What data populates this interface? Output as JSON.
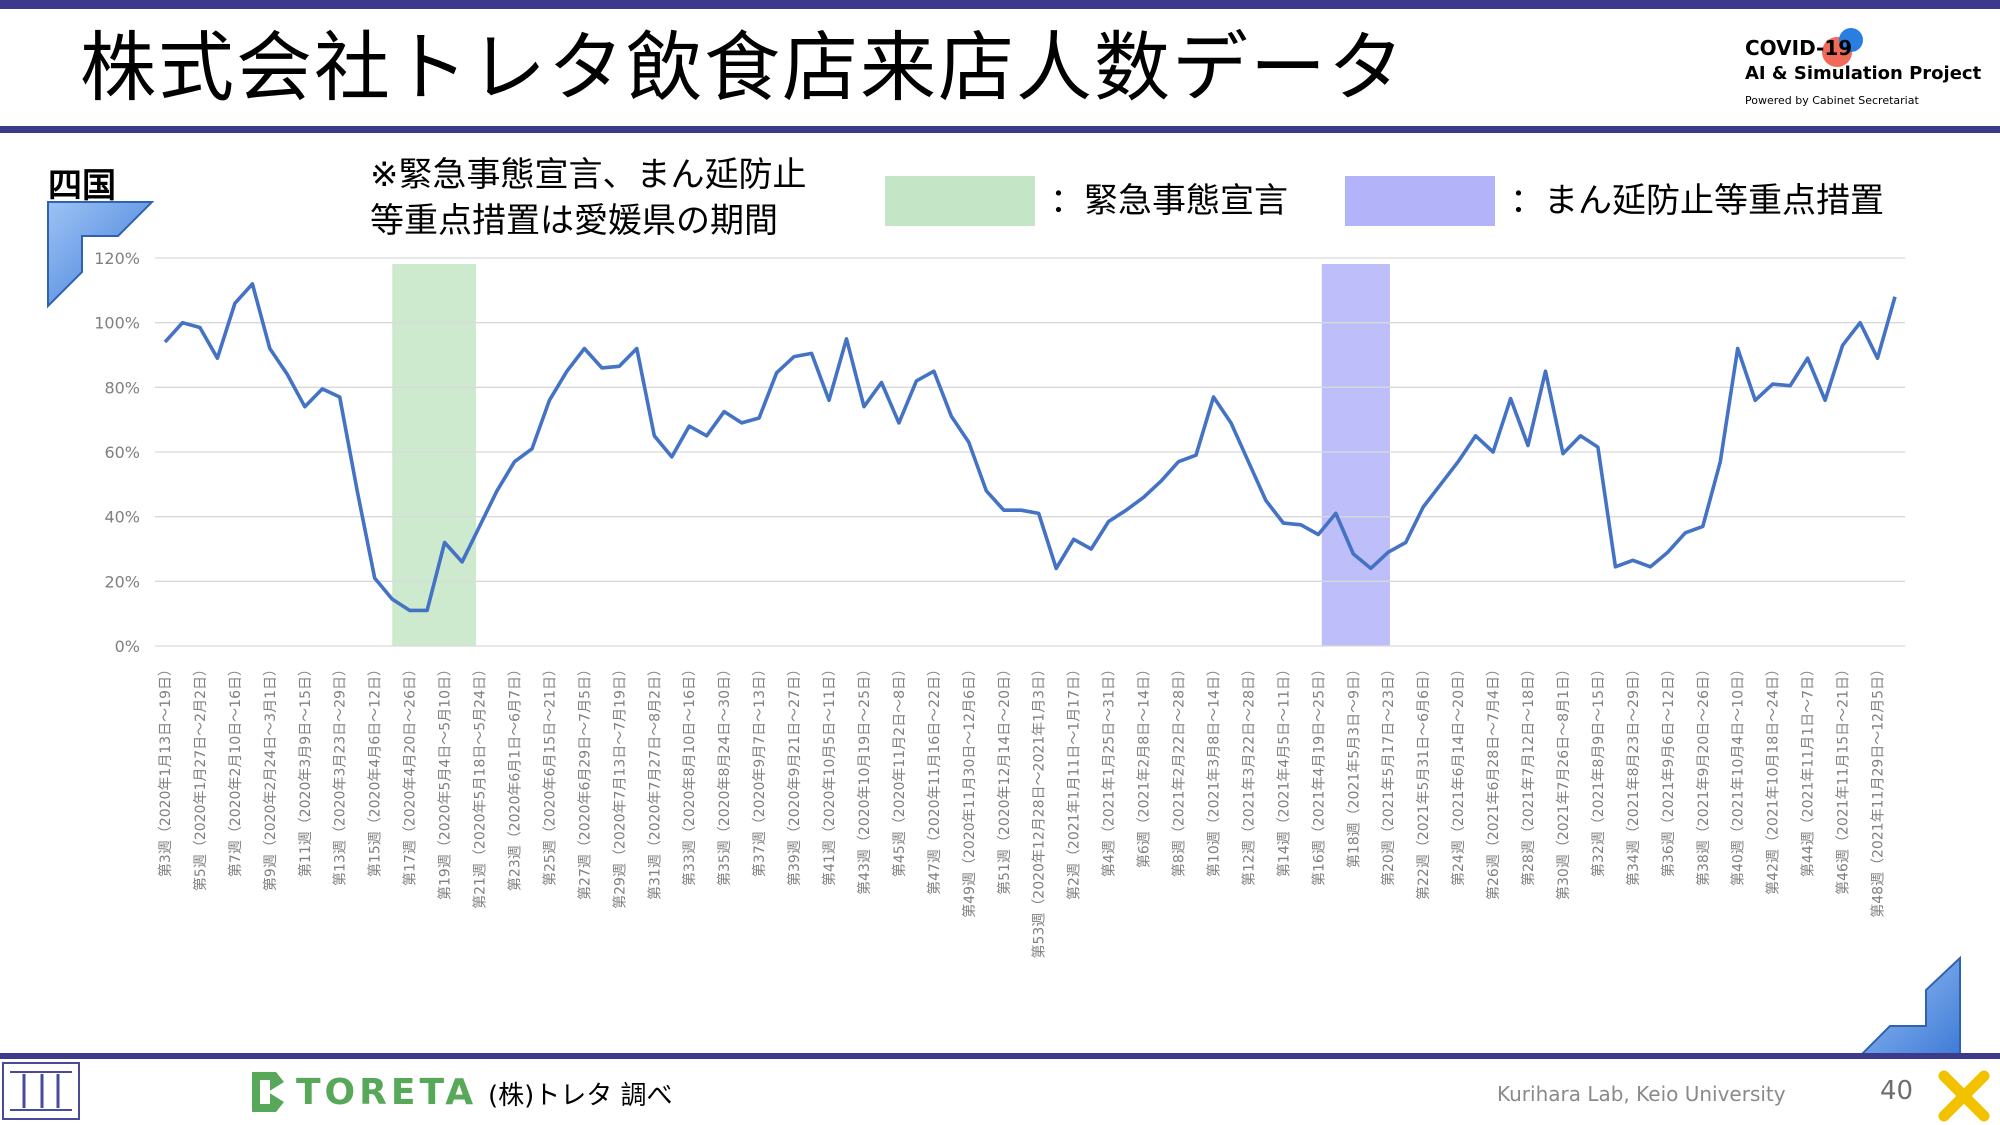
{
  "header": {
    "title": "株式会社トレタ飲食店来店人数データ",
    "logo_line1": "COVID-19",
    "logo_line2": "AI & Simulation Project",
    "logo_line3": "Powered by Cabinet Secretariat"
  },
  "region": "四国",
  "note": "※緊急事態宣言、まん延防止\n等重点措置は愛媛県の期間",
  "legend": {
    "green_label": "：緊急事態宣言",
    "blue_label": "：まん延防止等重点措置",
    "green_color": "#c5e6c6",
    "blue_color": "#b3b3fa"
  },
  "footer": {
    "brand": "TORETA",
    "source": "(株)トレタ 調べ",
    "credit": "Kurihara Lab, Keio University",
    "page": "40"
  },
  "chart_data": {
    "type": "line",
    "ylim": [
      0,
      120
    ],
    "yticks": [
      "0%",
      "20%",
      "40%",
      "60%",
      "80%",
      "100%",
      "120%"
    ],
    "grid": true,
    "line_color": "#4472c4",
    "x_labels": [
      "第3週（2020年1月13日～19日）",
      "第5週（2020年1月27日～2月2日）",
      "第7週（2020年2月10日～16日）",
      "第9週（2020年2月24日～3月1日）",
      "第11週（2020年3月9日～15日）",
      "第13週（2020年3月23日～29日）",
      "第15週（2020年4月6日～12日）",
      "第17週（2020年4月20日～26日）",
      "第19週（2020年5月4日～5月10日）",
      "第21週（2020年5月18日～5月24日）",
      "第23週（2020年6月1日～6月7日）",
      "第25週（2020年6月15日～21日）",
      "第27週（2020年6月29日～7月5日）",
      "第29週（2020年7月13日～7月19日）",
      "第31週（2020年7月27日～8月2日）",
      "第33週（2020年8月10日～16日）",
      "第35週（2020年8月24日～30日）",
      "第37週（2020年9月7日～13日）",
      "第39週（2020年9月21日～27日）",
      "第41週（2020年10月5日～11日）",
      "第43週（2020年10月19日～25日）",
      "第45週（2020年11月2日～8日）",
      "第47週（2020年11月16日～22日）",
      "第49週（2020年11月30日～12月6日）",
      "第51週（2020年12月14日～20日）",
      "第53週（2020年12月28日～2021年1月3日）",
      "第2週（2021年1月11日～1月17日）",
      "第4週（2021年1月25日～31日）",
      "第6週（2021年2月8日～14日）",
      "第8週（2021年2月22日～28日）",
      "第10週（2021年3月8日～14日）",
      "第12週（2021年3月22日～28日）",
      "第14週（2021年4月5日～11日）",
      "第16週（2021年4月19日～25日）",
      "第18週（2021年5月3日～9日）",
      "第20週（2021年5月17日～23日）",
      "第22週（2021年5月31日～6月6日）",
      "第24週（2021年6月14日～20日）",
      "第26週（2021年6月28日～7月4日）",
      "第28週（2021年7月12日～18日）",
      "第30週（2021年7月26日～8月1日）",
      "第32週（2021年8月9日～15日）",
      "第34週（2021年8月23日～29日）",
      "第36週（2021年9月6日～12日）",
      "第38週（2021年9月20日～26日）",
      "第40週（2021年10月4日～10日）",
      "第42週（2021年10月18日～24日）",
      "第44週（2021年11月1日～7日）",
      "第46週（2021年11月15日～21日）",
      "第48週（2021年11月29日～12月5日）"
    ],
    "values": [
      94,
      100,
      98.5,
      89,
      106,
      112,
      92,
      84,
      74,
      79.5,
      77,
      48,
      21,
      14.5,
      11,
      11,
      32,
      26,
      37,
      48,
      57,
      61,
      76,
      85,
      92,
      86,
      86.5,
      92,
      65,
      58.5,
      68,
      65,
      72.5,
      69,
      70.5,
      84.5,
      89.5,
      90.5,
      76,
      95,
      74,
      81.5,
      69,
      82,
      85,
      71,
      63,
      48,
      42,
      42,
      41,
      24,
      33,
      30,
      38.5,
      42,
      46,
      51,
      57,
      59,
      77,
      69,
      57,
      45,
      38,
      37.5,
      34.5,
      41,
      28.5,
      24,
      29,
      32,
      43,
      50,
      57,
      65,
      60,
      76.5,
      62,
      85,
      59.5,
      65,
      61.5,
      24.5,
      26.5,
      24.5,
      29,
      35,
      37,
      57,
      92,
      76,
      81,
      80.5,
      89,
      76,
      93,
      100,
      89,
      108
    ],
    "shaded_ranges": [
      {
        "type": "緊急事態宣言",
        "from": 13,
        "to": 17.8,
        "color": "#c5e6c6"
      },
      {
        "type": "まん延防止等重点措置",
        "from": 66.2,
        "to": 70.1,
        "color": "#b3b3fa"
      }
    ]
  }
}
